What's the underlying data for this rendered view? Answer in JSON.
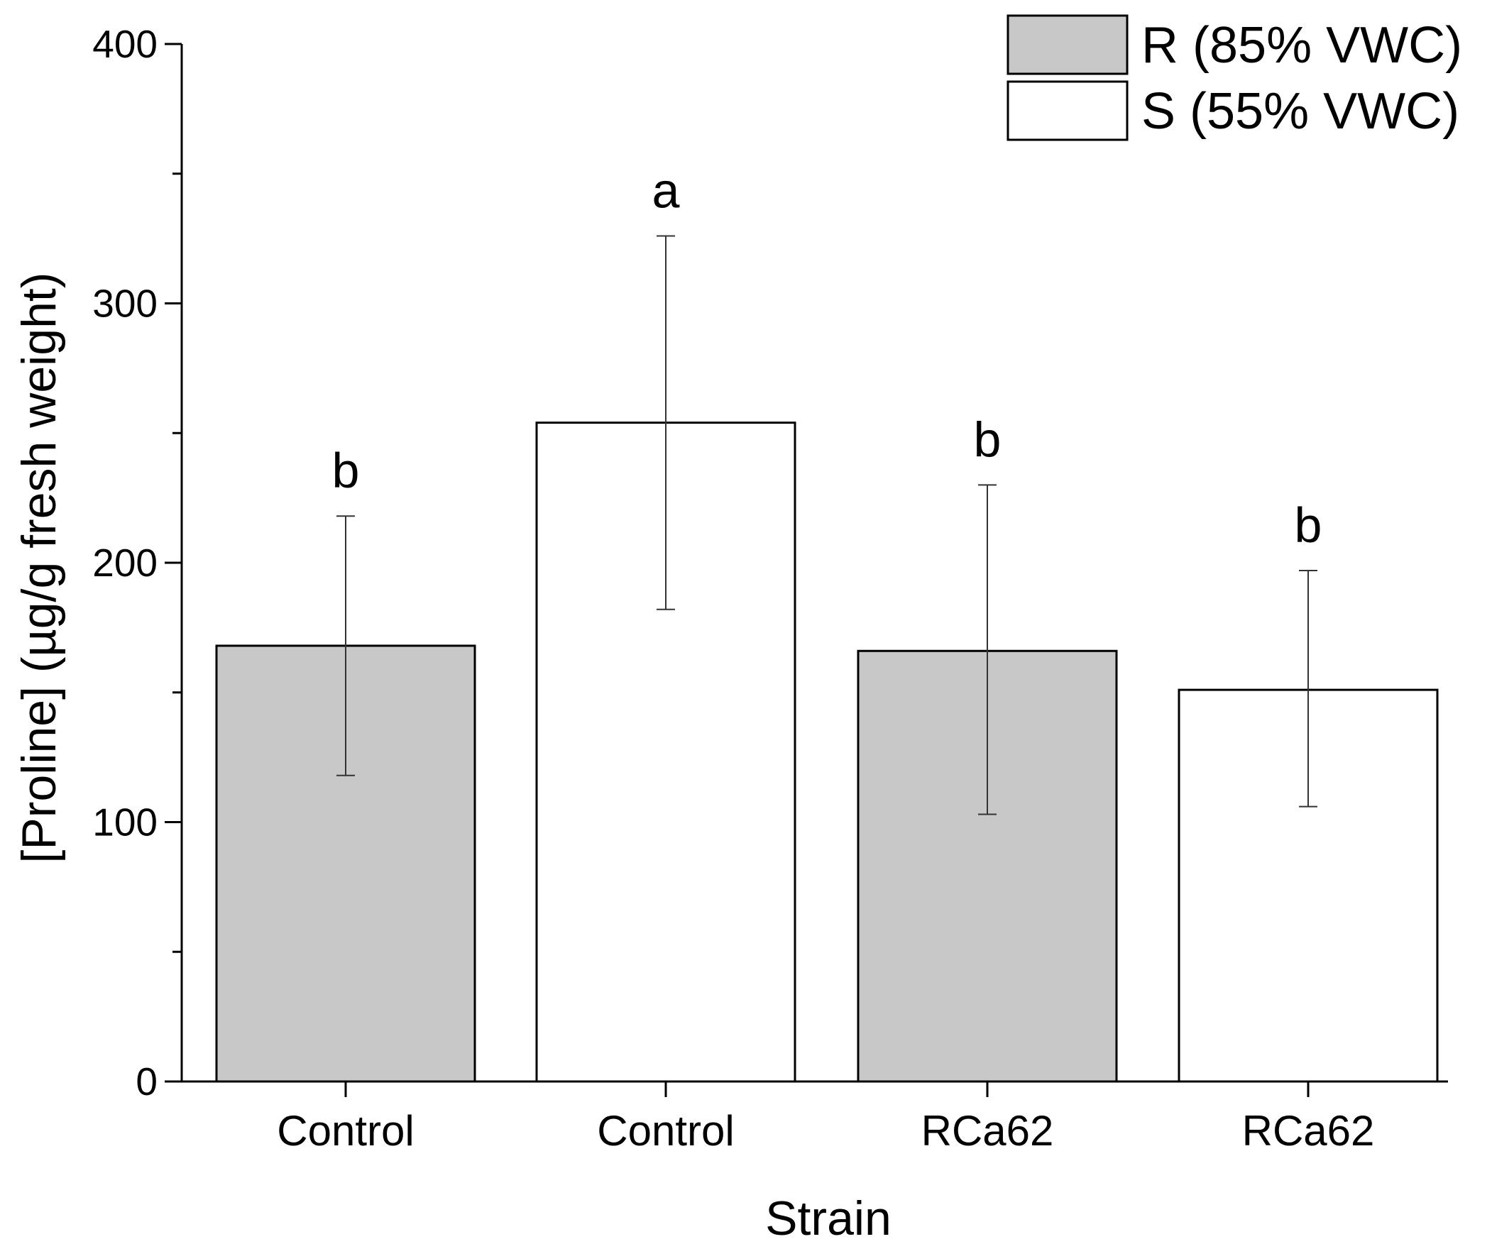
{
  "chart_data": {
    "type": "bar",
    "title": "",
    "xlabel": "Strain",
    "ylabel": "[Proline] (µg/g fresh weight)",
    "ylim": [
      0,
      400
    ],
    "yticks": [
      0,
      100,
      200,
      300,
      400
    ],
    "ytick_labels": [
      "0",
      "100",
      "200",
      "300",
      "400"
    ],
    "y_minor_ticks": [
      50,
      150,
      250,
      350
    ],
    "categories": [
      "Control",
      "Control",
      "RCa62",
      "RCa62"
    ],
    "series_index": [
      0,
      1,
      0,
      1
    ],
    "values": [
      168,
      254,
      166,
      151
    ],
    "error_low": [
      118,
      182,
      103,
      106
    ],
    "error_high": [
      218,
      326,
      230,
      197
    ],
    "significance": [
      "b",
      "a",
      "b",
      "b"
    ],
    "series": [
      {
        "name": "R (85% VWC)",
        "color": "#c8c8c8"
      },
      {
        "name": "S (55% VWC)",
        "color": "#ffffff"
      }
    ],
    "legend_position": "top-right",
    "grid": false
  }
}
